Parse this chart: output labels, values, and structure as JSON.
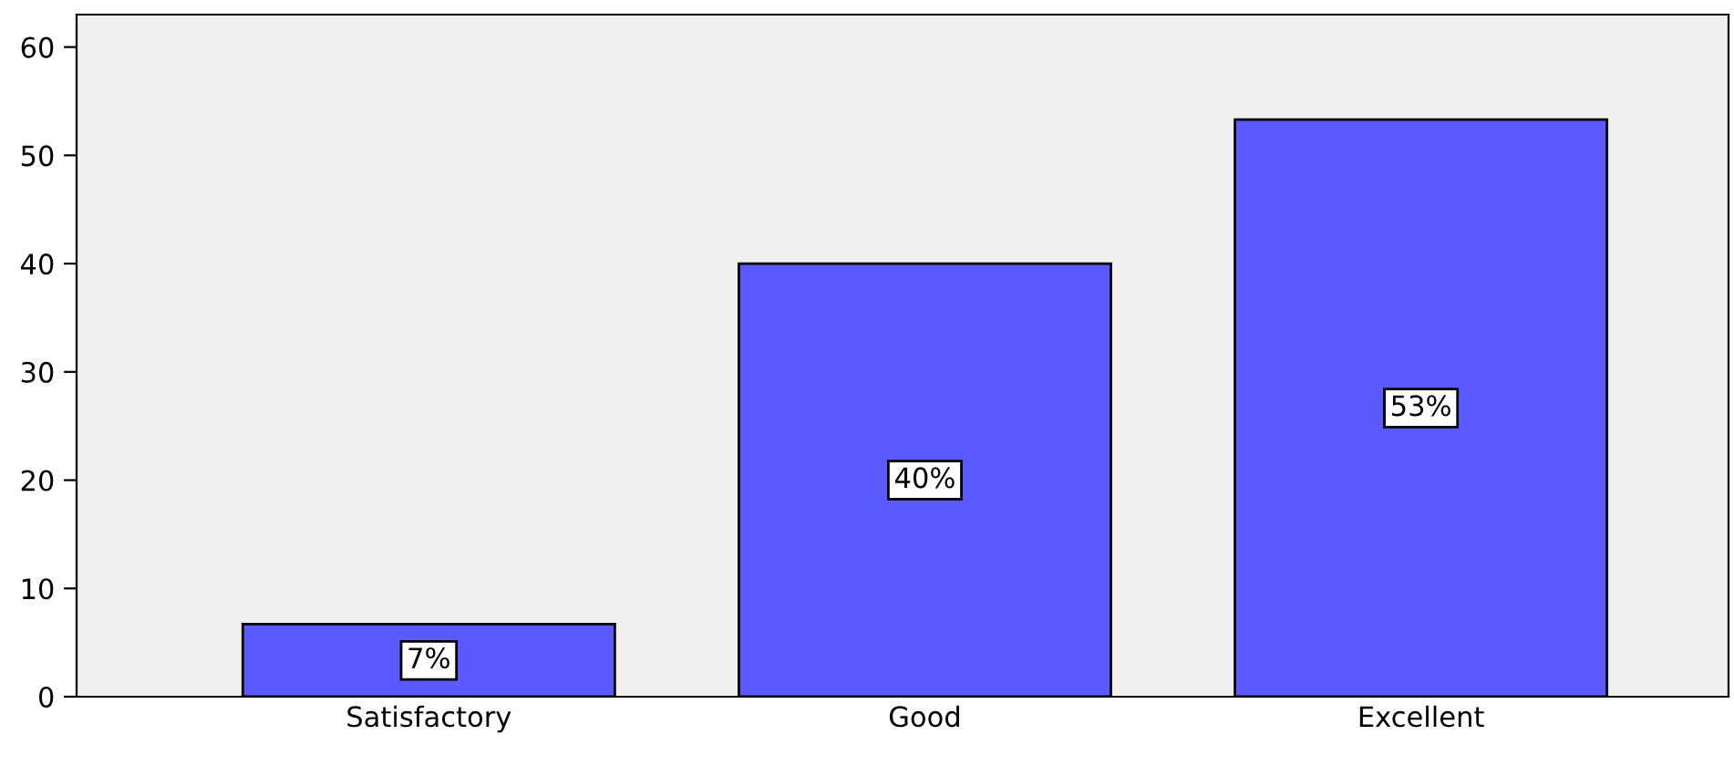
{
  "chart_data": {
    "type": "bar",
    "categories": [
      "Satisfactory",
      "Good",
      "Excellent"
    ],
    "values": [
      6.7,
      40,
      53.3
    ],
    "value_labels": [
      "7%",
      "40%",
      "53%"
    ],
    "color": "#5a5aff",
    "ylim": [
      0,
      63
    ],
    "yticks": [
      0,
      10,
      20,
      30,
      40,
      50,
      60
    ],
    "grid": false
  }
}
